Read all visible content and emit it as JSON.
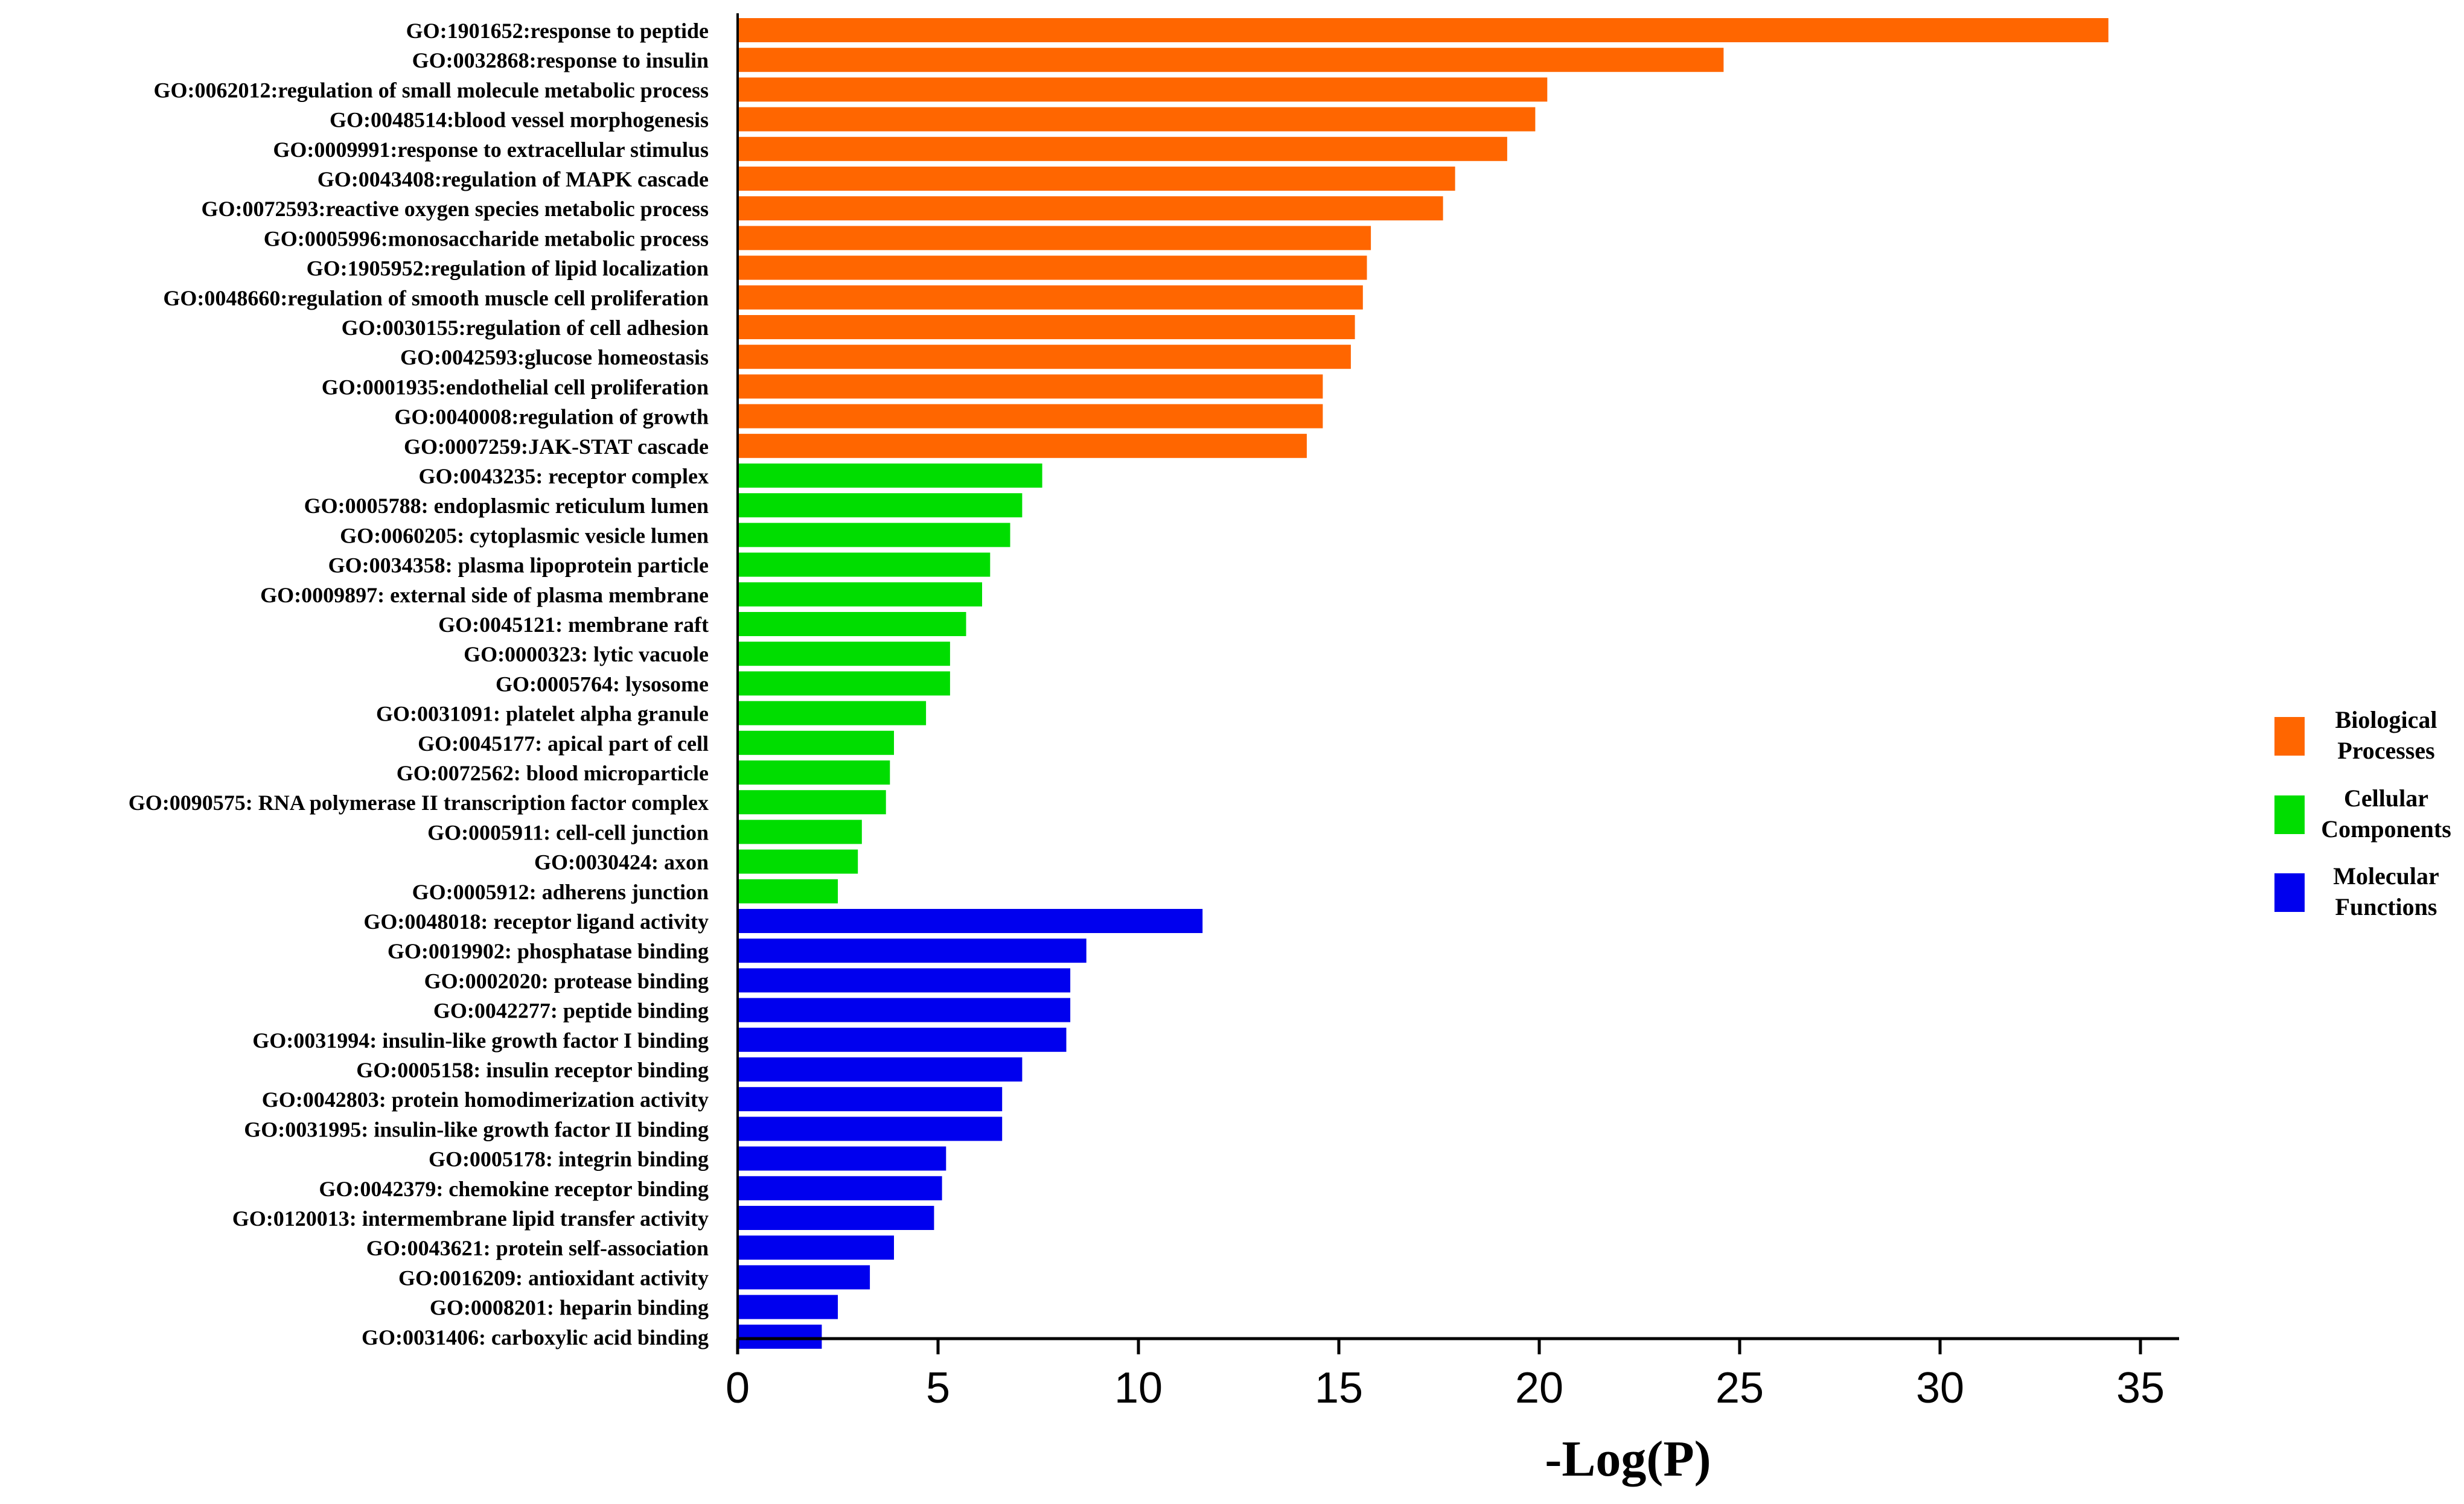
{
  "chart_data": {
    "type": "bar",
    "orientation": "horizontal",
    "title": "",
    "xlabel": "-Log(P)",
    "ylabel": "",
    "xlim": [
      0,
      36
    ],
    "xticks": [
      0,
      5,
      10,
      15,
      20,
      25,
      30,
      35
    ],
    "grid": false,
    "legend_position": "right",
    "series": [
      {
        "name": "Biological Processes",
        "legend_lines": [
          "Biological",
          "Processes"
        ],
        "color": "#FF6600",
        "categories": [
          "GO:1901652:response to peptide",
          "GO:0032868:response to insulin",
          "GO:0062012:regulation of small molecule metabolic process",
          "GO:0048514:blood vessel morphogenesis",
          "GO:0009991:response to extracellular stimulus",
          "GO:0043408:regulation of MAPK cascade",
          "GO:0072593:reactive oxygen species metabolic process",
          "GO:0005996:monosaccharide metabolic process",
          "GO:1905952:regulation of lipid localization",
          "GO:0048660:regulation of smooth muscle cell proliferation",
          "GO:0030155:regulation of cell adhesion",
          "GO:0042593:glucose homeostasis",
          "GO:0001935:endothelial cell proliferation",
          "GO:0040008:regulation of growth",
          "GO:0007259:JAK-STAT cascade"
        ],
        "values": [
          34.2,
          24.6,
          20.2,
          19.9,
          19.2,
          17.9,
          17.6,
          15.8,
          15.7,
          15.6,
          15.4,
          15.3,
          14.6,
          14.6,
          14.2
        ]
      },
      {
        "name": "Cellular Components",
        "legend_lines": [
          "Cellular",
          "Components"
        ],
        "color": "#00DD00",
        "categories": [
          "GO:0043235: receptor complex",
          "GO:0005788: endoplasmic reticulum lumen",
          "GO:0060205: cytoplasmic vesicle lumen",
          "GO:0034358: plasma lipoprotein particle",
          "GO:0009897: external side of plasma membrane",
          "GO:0045121: membrane raft",
          "GO:0000323: lytic vacuole",
          "GO:0005764: lysosome",
          "GO:0031091: platelet alpha granule",
          "GO:0045177: apical part of cell",
          "GO:0072562: blood microparticle",
          "GO:0090575: RNA polymerase II transcription factor complex",
          "GO:0005911: cell-cell junction",
          "GO:0030424: axon",
          "GO:0005912: adherens junction"
        ],
        "values": [
          7.6,
          7.1,
          6.8,
          6.3,
          6.1,
          5.7,
          5.3,
          5.3,
          4.7,
          3.9,
          3.8,
          3.7,
          3.1,
          3.0,
          2.5
        ]
      },
      {
        "name": "Molecular Functions",
        "legend_lines": [
          "Molecular",
          "Functions"
        ],
        "color": "#0000EE",
        "categories": [
          "GO:0048018: receptor ligand activity",
          "GO:0019902: phosphatase binding",
          "GO:0002020: protease binding",
          "GO:0042277: peptide binding",
          "GO:0031994: insulin-like growth factor I binding",
          "GO:0005158: insulin receptor binding",
          "GO:0042803: protein homodimerization activity",
          "GO:0031995: insulin-like growth factor II binding",
          "GO:0005178: integrin binding",
          "GO:0042379: chemokine receptor binding",
          "GO:0120013: intermembrane lipid transfer activity",
          "GO:0043621: protein self-association",
          "GO:0016209: antioxidant activity",
          "GO:0008201: heparin binding",
          "GO:0031406: carboxylic acid binding"
        ],
        "values": [
          11.6,
          8.7,
          8.3,
          8.3,
          8.2,
          7.1,
          6.6,
          6.6,
          5.2,
          5.1,
          4.9,
          3.9,
          3.3,
          2.5,
          2.1
        ]
      }
    ]
  }
}
